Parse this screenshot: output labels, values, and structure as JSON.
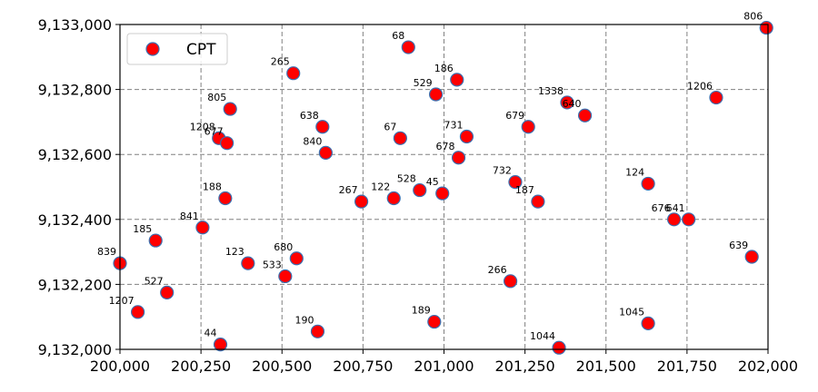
{
  "chart_data": {
    "type": "scatter",
    "title": "",
    "xlabel": "",
    "ylabel": "",
    "xlim": [
      200000,
      202000
    ],
    "ylim": [
      9132000,
      9133000
    ],
    "xticks": [
      200000,
      200250,
      200500,
      200750,
      201000,
      201250,
      201500,
      201750,
      202000
    ],
    "yticks": [
      9132000,
      9132200,
      9132400,
      9132600,
      9132800,
      9133000
    ],
    "xtick_labels": [
      "200,000",
      "200,250",
      "200,500",
      "200,750",
      "201,000",
      "201,250",
      "201,500",
      "201,750",
      "202,000"
    ],
    "ytick_labels": [
      "9,132,000",
      "9,132,200",
      "9,132,400",
      "9,132,600",
      "9,132,800",
      "9,133,000"
    ],
    "grid": true,
    "legend_position": "upper-left",
    "marker_color": "#ff0000",
    "marker_edge_color": "#3a6fb0",
    "series": [
      {
        "name": "CPT",
        "points": [
          {
            "label": "806",
            "x": 201995,
            "y": 9132990
          },
          {
            "label": "68",
            "x": 200890,
            "y": 9132930
          },
          {
            "label": "265",
            "x": 200535,
            "y": 9132850
          },
          {
            "label": "186",
            "x": 201040,
            "y": 9132830
          },
          {
            "label": "529",
            "x": 200975,
            "y": 9132785
          },
          {
            "label": "1206",
            "x": 201840,
            "y": 9132775
          },
          {
            "label": "1338",
            "x": 201380,
            "y": 9132760
          },
          {
            "label": "805",
            "x": 200340,
            "y": 9132740
          },
          {
            "label": "640",
            "x": 201435,
            "y": 9132720
          },
          {
            "label": "638",
            "x": 200625,
            "y": 9132685
          },
          {
            "label": "679",
            "x": 201260,
            "y": 9132685
          },
          {
            "label": "731",
            "x": 201070,
            "y": 9132655
          },
          {
            "label": "67",
            "x": 200865,
            "y": 9132650
          },
          {
            "label": "1208",
            "x": 200305,
            "y": 9132650
          },
          {
            "label": "677",
            "x": 200330,
            "y": 9132635
          },
          {
            "label": "840",
            "x": 200635,
            "y": 9132605
          },
          {
            "label": "678",
            "x": 201045,
            "y": 9132590
          },
          {
            "label": "732",
            "x": 201220,
            "y": 9132515
          },
          {
            "label": "124",
            "x": 201630,
            "y": 9132510
          },
          {
            "label": "528",
            "x": 200925,
            "y": 9132490
          },
          {
            "label": "45",
            "x": 200995,
            "y": 9132480
          },
          {
            "label": "188",
            "x": 200325,
            "y": 9132465
          },
          {
            "label": "122",
            "x": 200845,
            "y": 9132465
          },
          {
            "label": "267",
            "x": 200745,
            "y": 9132455
          },
          {
            "label": "187",
            "x": 201290,
            "y": 9132455
          },
          {
            "label": "676",
            "x": 201710,
            "y": 9132400
          },
          {
            "label": "641",
            "x": 201755,
            "y": 9132400
          },
          {
            "label": "841",
            "x": 200255,
            "y": 9132375
          },
          {
            "label": "185",
            "x": 200110,
            "y": 9132335
          },
          {
            "label": "680",
            "x": 200545,
            "y": 9132280
          },
          {
            "label": "639",
            "x": 201950,
            "y": 9132285
          },
          {
            "label": "839",
            "x": 200000,
            "y": 9132265
          },
          {
            "label": "123",
            "x": 200395,
            "y": 9132265
          },
          {
            "label": "533",
            "x": 200510,
            "y": 9132225
          },
          {
            "label": "266",
            "x": 201205,
            "y": 9132210
          },
          {
            "label": "527",
            "x": 200145,
            "y": 9132175
          },
          {
            "label": "1207",
            "x": 200055,
            "y": 9132115
          },
          {
            "label": "189",
            "x": 200970,
            "y": 9132085
          },
          {
            "label": "1045",
            "x": 201630,
            "y": 9132080
          },
          {
            "label": "190",
            "x": 200610,
            "y": 9132055
          },
          {
            "label": "44",
            "x": 200310,
            "y": 9132015
          },
          {
            "label": "1044",
            "x": 201355,
            "y": 9132005
          }
        ]
      }
    ]
  }
}
